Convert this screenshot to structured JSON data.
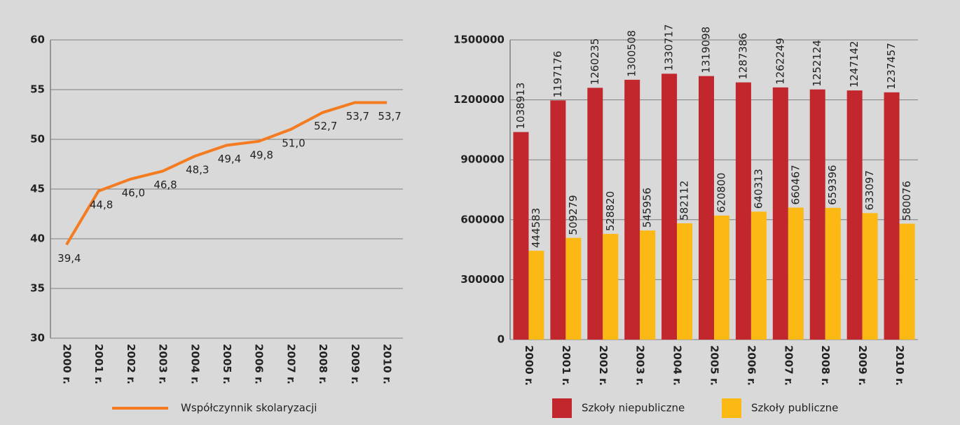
{
  "chart_data": [
    {
      "type": "line",
      "categories": [
        "2000 r.",
        "2001 r.",
        "2002 r.",
        "2003 r.",
        "2004 r.",
        "2005 r.",
        "2006 r.",
        "2007 r.",
        "2008 r.",
        "2009 r.",
        "2010 r."
      ],
      "series": [
        {
          "name": "Współczynnik skolaryzacji",
          "color": "#f47b20",
          "values": [
            39.4,
            44.8,
            46.0,
            46.8,
            48.3,
            49.4,
            49.8,
            51.0,
            52.7,
            53.7,
            53.7
          ],
          "value_labels": [
            "39,4",
            "44,8",
            "46,0",
            "46,8",
            "48,3",
            "49,4",
            "49,8",
            "51,0",
            "52,7",
            "53,7",
            "53,7"
          ]
        }
      ],
      "ylim": [
        30,
        60
      ],
      "yticks": [
        30,
        35,
        40,
        45,
        50,
        55,
        60
      ],
      "grid": true
    },
    {
      "type": "bar",
      "categories": [
        "2000 r.",
        "2001 r.",
        "2002 r.",
        "2003 r.",
        "2004 r.",
        "2005 r.",
        "2006 r.",
        "2007 r.",
        "2008 r.",
        "2009 r.",
        "2010 r."
      ],
      "series": [
        {
          "name": "Szkoły niepubliczne",
          "color": "#c1272d",
          "values": [
            1038913,
            1197176,
            1260235,
            1300508,
            1330717,
            1319098,
            1287386,
            1262249,
            1252124,
            1247142,
            1237457
          ]
        },
        {
          "name": "Szkoły publiczne",
          "color": "#fdb913",
          "values": [
            444583,
            509279,
            528820,
            545956,
            582112,
            620800,
            640313,
            660467,
            659396,
            633097,
            580076
          ]
        }
      ],
      "ylim": [
        0,
        1500000
      ],
      "yticks": [
        0,
        300000,
        600000,
        900000,
        1200000,
        1500000
      ],
      "grid": true
    }
  ]
}
